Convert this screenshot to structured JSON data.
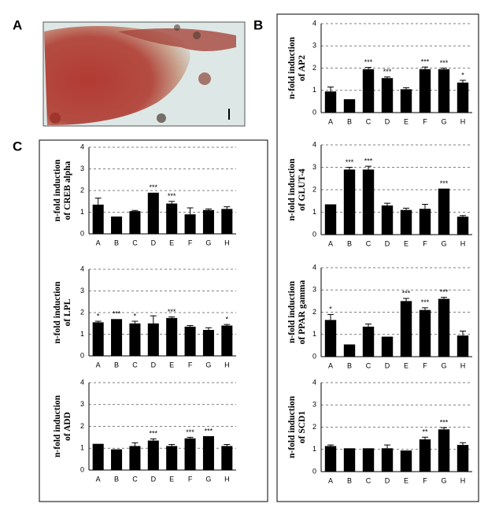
{
  "panel_labels": [
    "A",
    "B",
    "C"
  ],
  "chart_data": [
    {
      "type": "bar",
      "ylabel": [
        "n-fold induction",
        "of AP2"
      ],
      "categories": [
        "A",
        "B",
        "C",
        "D",
        "E",
        "F",
        "G",
        "H"
      ],
      "values": [
        0.95,
        0.6,
        1.95,
        1.55,
        1.05,
        1.95,
        1.95,
        1.35
      ],
      "errors": [
        0.2,
        null,
        0.08,
        0.05,
        0.07,
        0.1,
        0.05,
        0.1
      ],
      "annotations": [
        null,
        null,
        "***",
        "***",
        null,
        "***",
        "***",
        "*"
      ],
      "color": "#000000",
      "ylim": [
        0,
        4
      ],
      "yticks": [
        0,
        1,
        2,
        3,
        4
      ],
      "grid": true
    },
    {
      "type": "bar",
      "ylabel": [
        "n-fold induction",
        "of GLUT-4"
      ],
      "categories": [
        "A",
        "B",
        "C",
        "D",
        "E",
        "F",
        "G",
        "H"
      ],
      "values": [
        1.35,
        2.9,
        2.9,
        1.3,
        1.1,
        1.15,
        2.05,
        0.8
      ],
      "errors": [
        null,
        0.1,
        0.15,
        0.1,
        0.08,
        0.2,
        null,
        0.05
      ],
      "annotations": [
        null,
        "***",
        "***",
        null,
        null,
        null,
        "***",
        null
      ],
      "color": "#000000",
      "ylim": [
        0,
        4
      ],
      "yticks": [
        0,
        1,
        2,
        3,
        4
      ],
      "grid": true
    },
    {
      "type": "bar",
      "ylabel": [
        "n-fold induction",
        "of PPAR gamma"
      ],
      "categories": [
        "A",
        "B",
        "C",
        "D",
        "E",
        "F",
        "G",
        "H"
      ],
      "values": [
        1.65,
        0.55,
        1.35,
        0.9,
        2.5,
        2.1,
        2.6,
        0.95
      ],
      "errors": [
        0.25,
        null,
        0.12,
        null,
        0.12,
        0.1,
        0.07,
        0.2
      ],
      "annotations": [
        "*",
        null,
        null,
        null,
        "***",
        "***",
        "***",
        null
      ],
      "color": "#000000",
      "ylim": [
        0,
        4
      ],
      "yticks": [
        0,
        1,
        2,
        3,
        4
      ],
      "grid": true
    },
    {
      "type": "bar",
      "ylabel": [
        "n-fold induction",
        "of SCD1"
      ],
      "categories": [
        "A",
        "B",
        "C",
        "D",
        "E",
        "F",
        "G",
        "H"
      ],
      "values": [
        1.15,
        1.05,
        1.05,
        1.05,
        0.95,
        1.45,
        1.9,
        1.2
      ],
      "errors": [
        0.05,
        null,
        null,
        0.15,
        null,
        0.1,
        0.08,
        0.1
      ],
      "annotations": [
        null,
        null,
        null,
        null,
        null,
        "**",
        "***",
        null
      ],
      "color": "#000000",
      "ylim": [
        0,
        4
      ],
      "yticks": [
        0,
        1,
        2,
        3,
        4
      ],
      "grid": true
    },
    {
      "type": "bar",
      "ylabel": [
        "n-fold induction",
        "of CREB alpha"
      ],
      "categories": [
        "A",
        "B",
        "C",
        "D",
        "E",
        "F",
        "G",
        "H"
      ],
      "values": [
        1.35,
        0.8,
        1.05,
        1.9,
        1.4,
        0.9,
        1.1,
        1.15
      ],
      "errors": [
        0.3,
        null,
        0.03,
        null,
        0.1,
        0.3,
        0.05,
        0.1
      ],
      "annotations": [
        null,
        null,
        null,
        "***",
        "***",
        null,
        null,
        null
      ],
      "color": "#000000",
      "ylim": [
        0,
        4
      ],
      "yticks": [
        0,
        1,
        2,
        3,
        4
      ],
      "grid": true
    },
    {
      "type": "bar",
      "ylabel": [
        "n-fold induction",
        "of LPL"
      ],
      "categories": [
        "A",
        "B",
        "C",
        "D",
        "E",
        "F",
        "G",
        "H"
      ],
      "values": [
        1.55,
        1.7,
        1.5,
        1.5,
        1.75,
        1.35,
        1.2,
        1.4
      ],
      "errors": [
        0.05,
        null,
        0.1,
        0.35,
        0.05,
        0.05,
        0.1,
        0.05
      ],
      "annotations": [
        "*",
        "***",
        "*",
        null,
        "***",
        null,
        null,
        "*"
      ],
      "color": "#000000",
      "ylim": [
        0,
        4
      ],
      "yticks": [
        0,
        1,
        2,
        3,
        4
      ],
      "grid": true
    },
    {
      "type": "bar",
      "ylabel": [
        "n-fold induction",
        "of ADD"
      ],
      "categories": [
        "A",
        "B",
        "C",
        "D",
        "E",
        "F",
        "G",
        "H"
      ],
      "values": [
        1.2,
        0.95,
        1.1,
        1.35,
        1.1,
        1.45,
        1.55,
        1.1
      ],
      "errors": [
        null,
        null,
        0.15,
        0.08,
        0.07,
        0.05,
        null,
        0.07
      ],
      "annotations": [
        null,
        null,
        null,
        "***",
        null,
        "***",
        "***",
        null
      ],
      "color": "#000000",
      "ylim": [
        0,
        4
      ],
      "yticks": [
        0,
        1,
        2,
        3,
        4
      ],
      "grid": true
    }
  ]
}
